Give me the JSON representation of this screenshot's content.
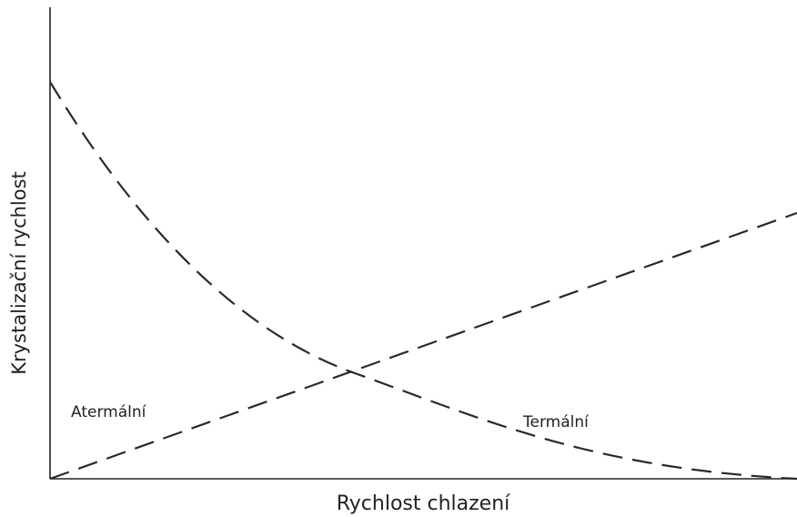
{
  "axes": {
    "x_label": "Rychlost chlazení",
    "y_label": "Krystalizační rychlost"
  },
  "curves": [
    {
      "label": "Atermální"
    },
    {
      "label": "Termální"
    }
  ]
}
